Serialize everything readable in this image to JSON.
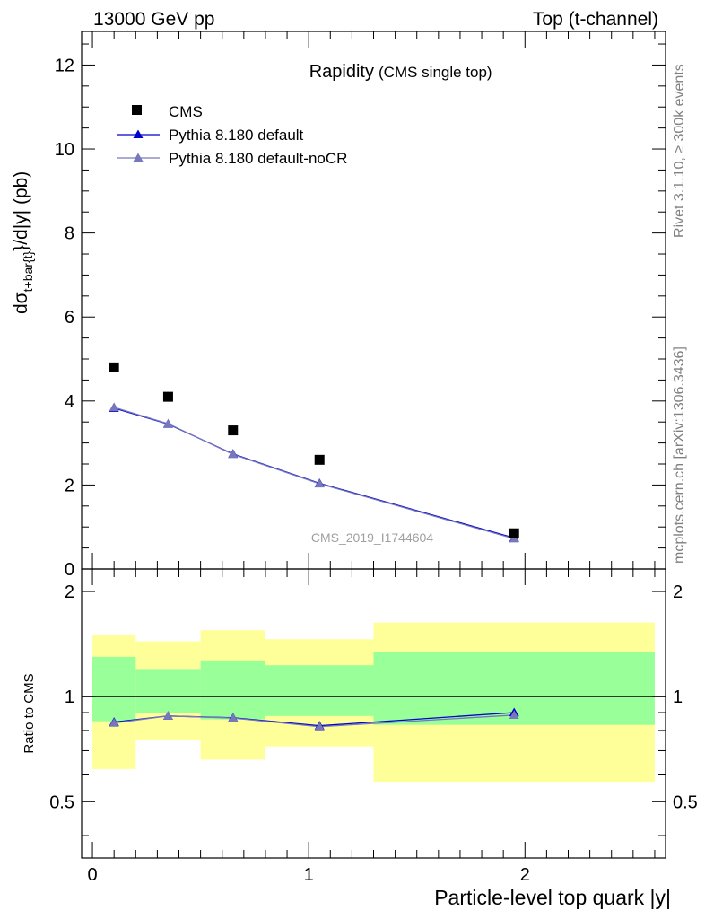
{
  "header": {
    "left": "13000 GeV pp",
    "right": "Top (t-channel)"
  },
  "side": {
    "rivet": "Rivet 3.1.10, ≥ 300k events",
    "mcplots": "mcplots.cern.ch [arXiv:1306.3436]"
  },
  "colors": {
    "cms": "#000000",
    "pythia_default": "#0000cc",
    "pythia_nocr": "#7777bb",
    "band_outer": "#ffff99",
    "band_inner": "#99ff99"
  },
  "chart_data": [
    {
      "type": "scatter",
      "title": "Rapidity",
      "subtitle": "(CMS single top)",
      "watermark": "CMS_2019_I1744604",
      "ylabel": "dσ t+bar{t} /d|y| (pb)",
      "ylabel_parts": {
        "main": "dσ",
        "sub": "t+bar{t}",
        "rest": "}/d|y|  (pb)"
      },
      "xlim": [
        -0.05,
        2.65
      ],
      "ylim": [
        0,
        12.8
      ],
      "yticks": [
        0,
        2,
        4,
        6,
        8,
        10,
        12
      ],
      "legend": "top-left",
      "series": [
        {
          "name": "CMS",
          "x": [
            0.1,
            0.35,
            0.65,
            1.05,
            1.95
          ],
          "y": [
            4.8,
            4.1,
            3.3,
            2.6,
            0.85
          ]
        },
        {
          "name": "Pythia 8.180 default",
          "x": [
            0.1,
            0.35,
            0.65,
            1.05,
            1.95
          ],
          "y": [
            3.83,
            3.45,
            2.74,
            2.04,
            0.74
          ]
        },
        {
          "name": "Pythia 8.180 default-noCR",
          "x": [
            0.1,
            0.35,
            0.65,
            1.05,
            1.95
          ],
          "y": [
            3.85,
            3.46,
            2.73,
            2.03,
            0.72
          ]
        }
      ]
    },
    {
      "type": "line",
      "xlabel": "Particle-level top quark |y|",
      "ylabel": "Ratio to CMS",
      "xlim": [
        -0.05,
        2.65
      ],
      "ylim": [
        0.345,
        2.32
      ],
      "xticks": [
        0,
        1,
        2
      ],
      "yticks": [
        0.5,
        1,
        2
      ],
      "reference": 1,
      "bins": [
        {
          "lo": 0.0,
          "hi": 0.2,
          "outer": [
            0.62,
            1.5
          ],
          "inner": [
            0.85,
            1.3
          ]
        },
        {
          "lo": 0.2,
          "hi": 0.5,
          "outer": [
            0.75,
            1.44
          ],
          "inner": [
            0.9,
            1.2
          ]
        },
        {
          "lo": 0.5,
          "hi": 0.8,
          "outer": [
            0.66,
            1.55
          ],
          "inner": [
            0.86,
            1.27
          ]
        },
        {
          "lo": 0.8,
          "hi": 1.3,
          "outer": [
            0.72,
            1.46
          ],
          "inner": [
            0.88,
            1.23
          ]
        },
        {
          "lo": 1.3,
          "hi": 2.6,
          "outer": [
            0.57,
            1.63
          ],
          "inner": [
            0.83,
            1.34
          ]
        }
      ],
      "series": [
        {
          "name": "Pythia 8.180 default",
          "x": [
            0.1,
            0.35,
            0.65,
            1.05,
            1.95
          ],
          "y": [
            0.845,
            0.88,
            0.87,
            0.825,
            0.9
          ]
        },
        {
          "name": "Pythia 8.180 default-noCR",
          "x": [
            0.1,
            0.35,
            0.65,
            1.05,
            1.95
          ],
          "y": [
            0.84,
            0.88,
            0.868,
            0.82,
            0.885
          ]
        }
      ]
    }
  ]
}
